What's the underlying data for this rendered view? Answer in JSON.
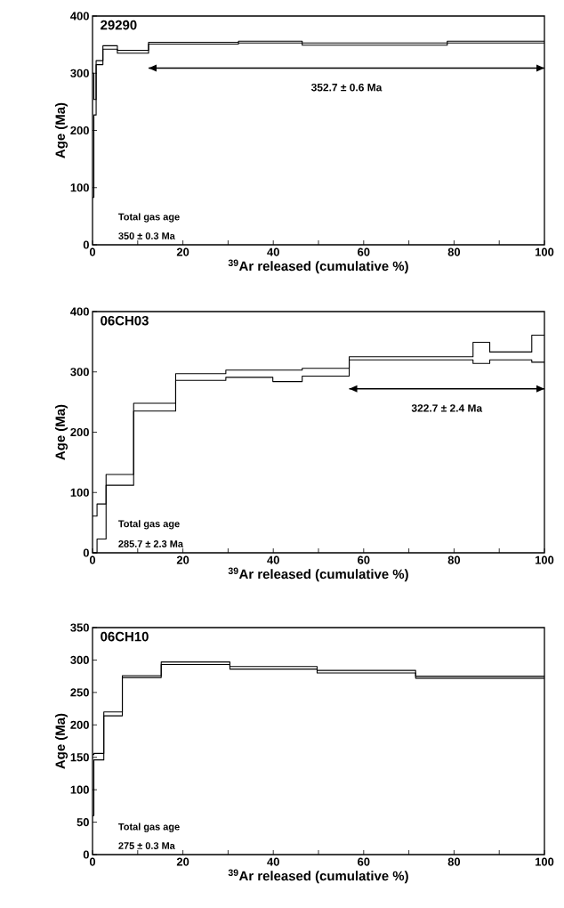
{
  "chart_data": [
    {
      "type": "step",
      "title": "29290",
      "xlabel": "$^{39}$Ar released (cumulative %)",
      "ylabel": "Age (Ma)",
      "x": [
        0,
        0.3,
        0.8,
        2.3,
        5.5,
        12.4,
        32.3,
        46.4,
        78.5,
        100
      ],
      "series": [
        {
          "color": "#000000",
          "values": [
            300,
            254,
            322,
            348,
            340,
            354,
            356,
            353,
            356,
            356
          ]
        },
        {
          "color": "#000000",
          "values": [
            83,
            227,
            315,
            342,
            335,
            351,
            353,
            349,
            353,
            353
          ]
        },
        {
          "type": "line",
          "name": "352.7 ± 0.6  Ma",
          "color": "#000000",
          "x": [
            12.4,
            100
          ],
          "values": [
            309,
            309
          ]
        }
      ],
      "xlim": [
        0,
        100
      ],
      "ylim": [
        0,
        400
      ],
      "xticks": [
        0,
        {
          "value": 10,
          "label": null
        },
        20,
        {
          "value": 30,
          "label": null
        },
        40,
        {
          "value": 50,
          "label": null
        },
        60,
        {
          "value": 70,
          "label": null
        },
        80,
        {
          "value": 90,
          "label": null
        },
        100
      ],
      "yticks": [
        0,
        100,
        200,
        300,
        400
      ],
      "annotations": [
        "Total gas age",
        "350 ± 0.3 Ma"
      ]
    },
    {
      "type": "step",
      "title": "06CH03",
      "xlabel": "$^{39}$Ar released (cumulative %)",
      "ylabel": "Age (Ma)",
      "x": [
        0,
        1.0,
        3.0,
        9.1,
        18.4,
        29.5,
        39.9,
        46.4,
        56.8,
        84.2,
        87.9,
        97.2,
        100
      ],
      "series": [
        {
          "color": "#000000",
          "values": [
            61,
            81,
            130,
            248,
            297,
            303,
            303,
            306,
            325,
            349,
            333,
            361,
            361
          ]
        },
        {
          "color": "#000000",
          "values": [
            0,
            23,
            112,
            235,
            286,
            291,
            284,
            293,
            320,
            314,
            320,
            316,
            316
          ]
        },
        {
          "type": "line",
          "name": "322.7 ± 2.4 Ma",
          "color": "#000000",
          "x": [
            56.8,
            100
          ],
          "values": [
            272,
            272
          ]
        }
      ],
      "xlim": [
        0,
        100
      ],
      "ylim": [
        0,
        400
      ],
      "xticks": [
        0,
        {
          "value": 10,
          "label": null
        },
        20,
        {
          "value": 30,
          "label": null
        },
        40,
        {
          "value": 50,
          "label": null
        },
        60,
        {
          "value": 70,
          "label": null
        },
        80,
        {
          "value": 90,
          "label": null
        },
        100
      ],
      "yticks": [
        0,
        100,
        200,
        300,
        400
      ],
      "annotations": [
        "Total gas age",
        "285.7 ± 2.3 Ma"
      ]
    },
    {
      "type": "step",
      "title": "06CH10",
      "xlabel": "$^{39}$Ar released (cumulative %)",
      "ylabel": "Age (Ma)",
      "x": [
        0,
        0.3,
        2.5,
        6.6,
        15.2,
        30.4,
        49.7,
        71.5,
        100
      ],
      "series": [
        {
          "color": "#000000",
          "values": [
            154,
            156,
            220,
            276,
            297,
            290,
            284,
            275,
            275
          ]
        },
        {
          "color": "#000000",
          "values": [
            60,
            146,
            214,
            273,
            293,
            286,
            280,
            272,
            272
          ]
        }
      ],
      "xlim": [
        0,
        100
      ],
      "ylim": [
        0,
        350
      ],
      "xticks": [
        0,
        {
          "value": 10,
          "label": null
        },
        20,
        {
          "value": 30,
          "label": null
        },
        40,
        {
          "value": 50,
          "label": null
        },
        60,
        {
          "value": 70,
          "label": null
        },
        80,
        {
          "value": 90,
          "label": null
        },
        100
      ],
      "yticks": [
        0,
        50,
        100,
        150,
        200,
        250,
        300,
        350
      ],
      "annotations": [
        "Total gas age",
        "275 ± 0.3 Ma"
      ]
    }
  ]
}
